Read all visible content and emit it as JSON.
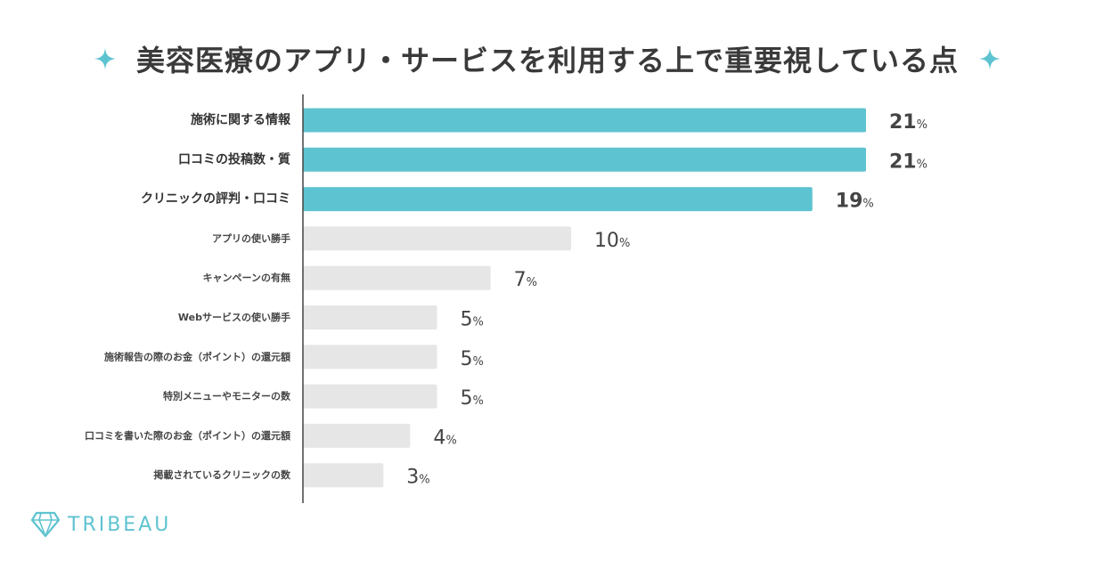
{
  "title": "美容医療のアプリ・サービスを利用する上で重要視している点",
  "logo": {
    "text": "TRIBEAU",
    "icon": "diamond-icon"
  },
  "colors": {
    "highlight": "#5ec3d0",
    "normal": "#e6e6e6",
    "axis": "#444444",
    "sparkle": "#5ec3d0"
  },
  "chart_data": {
    "type": "bar",
    "orientation": "horizontal",
    "title": "美容医療のアプリ・サービスを利用する上で重要視している点",
    "unit": "%",
    "xlim": [
      0,
      21
    ],
    "categories": [
      "施術に関する情報",
      "口コミの投稿数・質",
      "クリニックの評判・口コミ",
      "アプリの使い勝手",
      "キャンペーンの有無",
      "Webサービスの使い勝手",
      "施術報告の際のお金（ポイント）の還元額",
      "特別メニューやモニターの数",
      "口コミを書いた際のお金（ポイント）の還元額",
      "掲載されているクリニックの数"
    ],
    "values": [
      21,
      21,
      19,
      10,
      7,
      5,
      5,
      5,
      4,
      3
    ],
    "highlighted": [
      true,
      true,
      true,
      false,
      false,
      false,
      false,
      false,
      false,
      false
    ]
  }
}
